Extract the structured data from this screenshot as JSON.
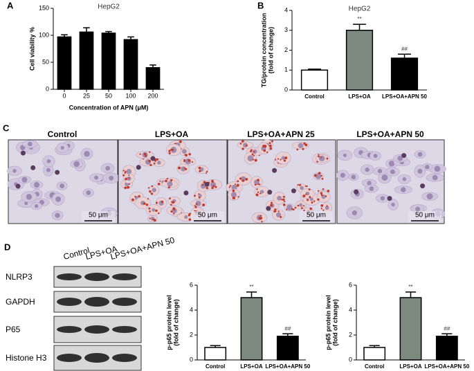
{
  "panels": [
    "A",
    "B",
    "C",
    "D"
  ],
  "chart_data": [
    {
      "type": "bar",
      "title": "HepG2",
      "x_label": "Concentration of APN (μM)",
      "y_label": [
        "Cell viability %"
      ],
      "categories": [
        "0",
        "25",
        "50",
        "100",
        "200"
      ],
      "values": [
        97,
        106,
        104,
        92,
        40
      ],
      "errors": [
        4,
        8,
        3,
        5,
        5
      ],
      "color": "#000000",
      "ylim": [
        0,
        150
      ],
      "yticks": [
        0,
        50,
        100,
        150
      ]
    },
    {
      "type": "bar",
      "title": "HepG2",
      "y_label": [
        "TG/protein concentration",
        "(fold of change)"
      ],
      "categories": [
        "Control",
        "LPS+OA",
        "LPS+OA+APN 50"
      ],
      "values": [
        1.0,
        3.0,
        1.6
      ],
      "errors": [
        0.05,
        0.3,
        0.2
      ],
      "colors": [
        "#ffffff",
        "#7d8a80",
        "#000000"
      ],
      "annotations": [
        null,
        "**",
        "##"
      ],
      "ylim": [
        0,
        4
      ],
      "yticks": [
        0,
        1,
        2,
        3,
        4
      ]
    },
    {
      "type": "bar",
      "y_label": [
        "p-p65 protein level",
        "(fold of change)"
      ],
      "categories": [
        "Control",
        "LPS+OA",
        "LPS+OA+APN 50"
      ],
      "values": [
        1.0,
        5.0,
        1.9
      ],
      "errors": [
        0.15,
        0.45,
        0.2
      ],
      "colors": [
        "#ffffff",
        "#7d8a80",
        "#000000"
      ],
      "annotations": [
        null,
        "**",
        "##"
      ],
      "ylim": [
        0,
        6
      ],
      "yticks": [
        0,
        2,
        4,
        6
      ]
    },
    {
      "type": "bar",
      "y_label": [
        "p-p65 protein level",
        "(fold of change)"
      ],
      "categories": [
        "Control",
        "LPS+OA",
        "LPS+OA+APN 50"
      ],
      "values": [
        1.0,
        5.0,
        1.9
      ],
      "errors": [
        0.15,
        0.45,
        0.2
      ],
      "colors": [
        "#ffffff",
        "#7d8a80",
        "#000000"
      ],
      "annotations": [
        null,
        "**",
        "##"
      ],
      "ylim": [
        0,
        6
      ],
      "yticks": [
        0,
        2,
        4,
        6
      ]
    }
  ],
  "images": {
    "labels": [
      "Control",
      "LPS+OA",
      "LPS+OA+APN 25",
      "LPS+OA+APN 50"
    ],
    "scale_bar": "50 μm"
  },
  "blot": {
    "lanes": [
      "Control",
      "LPS+OA",
      "LPS+OA+APN 50"
    ],
    "rows": [
      "NLRP3",
      "GAPDH",
      "P65",
      "Histone H3"
    ]
  }
}
